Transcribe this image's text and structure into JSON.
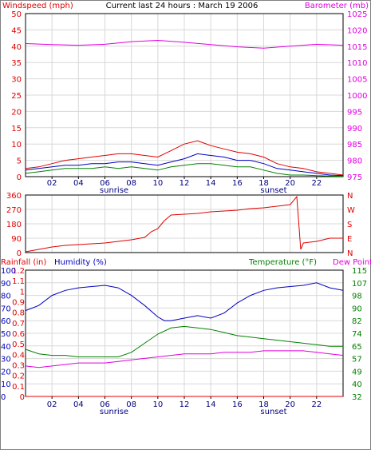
{
  "title": "Current last 24 hours : March 19 2006",
  "colors": {
    "wind": "#e00000",
    "gust": "#0000c0",
    "avgwind": "#008000",
    "baro": "#e000e0",
    "dir": "#e00000",
    "humidity": "#0000c0",
    "temperature": "#008000",
    "dewpoint": "#e000e0",
    "rain": "#e00000"
  },
  "x_ticks": [
    "02",
    "04",
    "06",
    "08",
    "10",
    "12",
    "14",
    "16",
    "18",
    "20",
    "22"
  ],
  "sunrise_label": "sunrise",
  "sunset_label": "sunset",
  "chart_data": [
    {
      "type": "line",
      "left_axis_label": "Windspeed (mph)",
      "right_axis_label": "Barometer (mb)",
      "left_ticks": [
        "50",
        "45",
        "40",
        "35",
        "30",
        "25",
        "20",
        "15",
        "10",
        "5",
        "0"
      ],
      "right_ticks": [
        "1025",
        "1020",
        "1015",
        "1010",
        "1005",
        "1000",
        "995",
        "990",
        "985",
        "980",
        "975"
      ],
      "ylim": [
        0,
        50
      ],
      "y2lim": [
        975,
        1025
      ],
      "xlim": [
        0,
        24
      ],
      "series": [
        {
          "axis": "left",
          "color": "#e00000",
          "points": [
            [
              0,
              2.5
            ],
            [
              1,
              3
            ],
            [
              2,
              4
            ],
            [
              3,
              5
            ],
            [
              4,
              5.5
            ],
            [
              5,
              6
            ],
            [
              6,
              6.5
            ],
            [
              7,
              7
            ],
            [
              8,
              7
            ],
            [
              9,
              6.5
            ],
            [
              10,
              6
            ],
            [
              11,
              8
            ],
            [
              12,
              10
            ],
            [
              13,
              11
            ],
            [
              14,
              9.5
            ],
            [
              15,
              8.5
            ],
            [
              16,
              7.5
            ],
            [
              17,
              7
            ],
            [
              18,
              6
            ],
            [
              19,
              4
            ],
            [
              20,
              3
            ],
            [
              21,
              2.5
            ],
            [
              22,
              1.5
            ],
            [
              23,
              1
            ],
            [
              24,
              0.5
            ]
          ]
        },
        {
          "axis": "left",
          "color": "#0000c0",
          "points": [
            [
              0,
              2
            ],
            [
              1,
              2.5
            ],
            [
              2,
              3
            ],
            [
              3,
              3.5
            ],
            [
              4,
              3.5
            ],
            [
              5,
              4
            ],
            [
              6,
              4
            ],
            [
              7,
              4.5
            ],
            [
              8,
              4.5
            ],
            [
              9,
              4
            ],
            [
              10,
              3.5
            ],
            [
              11,
              4.5
            ],
            [
              12,
              5.5
            ],
            [
              13,
              7
            ],
            [
              14,
              6.5
            ],
            [
              15,
              6
            ],
            [
              16,
              5
            ],
            [
              17,
              5
            ],
            [
              18,
              4
            ],
            [
              19,
              2.5
            ],
            [
              20,
              2
            ],
            [
              21,
              1.5
            ],
            [
              22,
              1
            ],
            [
              23,
              0.5
            ],
            [
              24,
              0.3
            ]
          ]
        },
        {
          "axis": "left",
          "color": "#008000",
          "points": [
            [
              0,
              1
            ],
            [
              1,
              1.5
            ],
            [
              2,
              2
            ],
            [
              3,
              2.5
            ],
            [
              4,
              2.5
            ],
            [
              5,
              2.5
            ],
            [
              6,
              3
            ],
            [
              7,
              2.5
            ],
            [
              8,
              3
            ],
            [
              9,
              2.5
            ],
            [
              10,
              2
            ],
            [
              11,
              3
            ],
            [
              12,
              3.5
            ],
            [
              13,
              4
            ],
            [
              14,
              4
            ],
            [
              15,
              3.5
            ],
            [
              16,
              3
            ],
            [
              17,
              3
            ],
            [
              18,
              2
            ],
            [
              19,
              1
            ],
            [
              20,
              0.5
            ],
            [
              21,
              0.5
            ],
            [
              22,
              0.3
            ],
            [
              23,
              0.2
            ],
            [
              24,
              0.1
            ]
          ]
        },
        {
          "axis": "right",
          "color": "#e000e0",
          "points": [
            [
              0,
              1015.8
            ],
            [
              2,
              1015.5
            ],
            [
              4,
              1015.3
            ],
            [
              6,
              1015.6
            ],
            [
              8,
              1016.4
            ],
            [
              10,
              1016.8
            ],
            [
              12,
              1016.2
            ],
            [
              14,
              1015.5
            ],
            [
              16,
              1014.8
            ],
            [
              18,
              1014.4
            ],
            [
              20,
              1015.0
            ],
            [
              22,
              1015.6
            ],
            [
              24,
              1015.3
            ]
          ]
        }
      ]
    },
    {
      "type": "line",
      "left_ticks": [
        "360",
        "270",
        "180",
        "90",
        "0"
      ],
      "right_ticks": [
        "N",
        "W",
        "S",
        "E",
        "N"
      ],
      "ylim": [
        0,
        360
      ],
      "xlim": [
        0,
        24
      ],
      "series": [
        {
          "axis": "left",
          "color": "#e00000",
          "points": [
            [
              0,
              5
            ],
            [
              1,
              20
            ],
            [
              2,
              35
            ],
            [
              3,
              45
            ],
            [
              4,
              50
            ],
            [
              5,
              55
            ],
            [
              6,
              60
            ],
            [
              7,
              70
            ],
            [
              8,
              80
            ],
            [
              9,
              95
            ],
            [
              9.5,
              130
            ],
            [
              10,
              150
            ],
            [
              10.5,
              200
            ],
            [
              11,
              235
            ],
            [
              12,
              240
            ],
            [
              13,
              245
            ],
            [
              14,
              255
            ],
            [
              15,
              260
            ],
            [
              16,
              265
            ],
            [
              17,
              275
            ],
            [
              18,
              280
            ],
            [
              19,
              290
            ],
            [
              20,
              300
            ],
            [
              20.5,
              350
            ],
            [
              20.8,
              20
            ],
            [
              21,
              60
            ],
            [
              22,
              70
            ],
            [
              23,
              90
            ],
            [
              24,
              90
            ]
          ]
        }
      ]
    },
    {
      "type": "line",
      "left_axis_label": "Rainfall (in)",
      "left2_axis_label": "Humidity (%)",
      "right_axis_label": "Temperature (°F)",
      "right2_axis_label": "Dew Point",
      "rain_ticks": [
        "1.2",
        "1.1",
        "1",
        "0.9",
        "0.8",
        "0.7",
        "0.6",
        "0.5",
        "0.4",
        "0.3",
        "0.2",
        "0.1",
        "0"
      ],
      "humidity_ticks": [
        "100",
        "90",
        "80",
        "70",
        "60",
        "50",
        "40",
        "30",
        "20",
        "10",
        "0"
      ],
      "temp_ticks": [
        "115",
        "107",
        "98",
        "90",
        "82",
        "74",
        "65",
        "57",
        "49",
        "40",
        "32"
      ],
      "ylim_humidity": [
        0,
        100
      ],
      "ylim_temp": [
        32,
        115
      ],
      "xlim": [
        0,
        24
      ],
      "series": [
        {
          "axis": "humidity",
          "color": "#0000c0",
          "points": [
            [
              0,
              68
            ],
            [
              1,
              72
            ],
            [
              2,
              80
            ],
            [
              3,
              84
            ],
            [
              4,
              86
            ],
            [
              5,
              87
            ],
            [
              6,
              88
            ],
            [
              7,
              86
            ],
            [
              8,
              80
            ],
            [
              9,
              72
            ],
            [
              10,
              63
            ],
            [
              10.5,
              60
            ],
            [
              11,
              60
            ],
            [
              12,
              62
            ],
            [
              13,
              64
            ],
            [
              14,
              62
            ],
            [
              15,
              66
            ],
            [
              16,
              74
            ],
            [
              17,
              80
            ],
            [
              18,
              84
            ],
            [
              19,
              86
            ],
            [
              20,
              87
            ],
            [
              21,
              88
            ],
            [
              22,
              90
            ],
            [
              23,
              86
            ],
            [
              24,
              84
            ]
          ]
        },
        {
          "axis": "temp",
          "color": "#008000",
          "points": [
            [
              0,
              63
            ],
            [
              1,
              60
            ],
            [
              2,
              59
            ],
            [
              3,
              59
            ],
            [
              4,
              58
            ],
            [
              5,
              58
            ],
            [
              6,
              58
            ],
            [
              7,
              58
            ],
            [
              8,
              61
            ],
            [
              9,
              67
            ],
            [
              10,
              73
            ],
            [
              11,
              77
            ],
            [
              12,
              78
            ],
            [
              13,
              77
            ],
            [
              14,
              76
            ],
            [
              15,
              74
            ],
            [
              16,
              72
            ],
            [
              17,
              71
            ],
            [
              18,
              70
            ],
            [
              19,
              69
            ],
            [
              20,
              68
            ],
            [
              21,
              67
            ],
            [
              22,
              66
            ],
            [
              23,
              65
            ],
            [
              24,
              65
            ]
          ]
        },
        {
          "axis": "temp",
          "color": "#e000e0",
          "points": [
            [
              0,
              52
            ],
            [
              1,
              51
            ],
            [
              2,
              52
            ],
            [
              3,
              53
            ],
            [
              4,
              54
            ],
            [
              5,
              54
            ],
            [
              6,
              54
            ],
            [
              7,
              55
            ],
            [
              8,
              56
            ],
            [
              9,
              57
            ],
            [
              10,
              58
            ],
            [
              11,
              59
            ],
            [
              12,
              60
            ],
            [
              13,
              60
            ],
            [
              14,
              60
            ],
            [
              15,
              61
            ],
            [
              16,
              61
            ],
            [
              17,
              61
            ],
            [
              18,
              62
            ],
            [
              19,
              62
            ],
            [
              20,
              62
            ],
            [
              21,
              62
            ],
            [
              22,
              61
            ],
            [
              23,
              60
            ],
            [
              24,
              59
            ]
          ]
        },
        {
          "axis": "humidity",
          "color": "#e00000",
          "points": [
            [
              0,
              0
            ],
            [
              24,
              0
            ]
          ]
        }
      ]
    }
  ]
}
